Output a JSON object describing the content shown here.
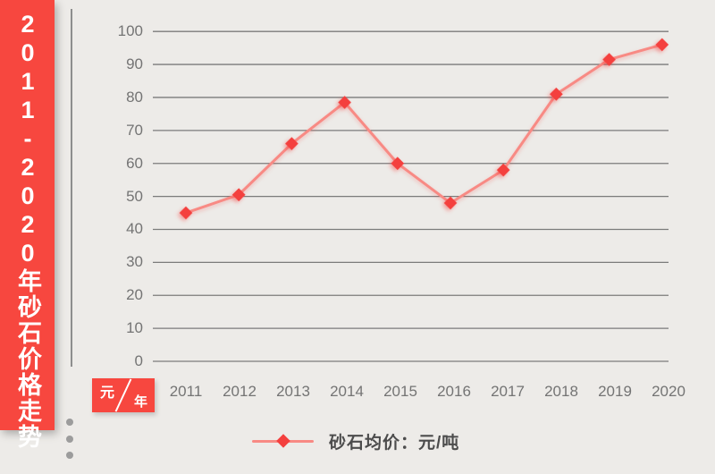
{
  "banner": {
    "title": "2011-2020年砂石价格走势"
  },
  "axis_unit_badge": {
    "numerator": "元",
    "denominator": "年"
  },
  "legend": {
    "label": "砂石均价：元/吨"
  },
  "colors": {
    "background": "#edebe8",
    "banner_red": "#f7473f",
    "badge_red": "#f7473f",
    "marker_red": "#f4403e",
    "series_line": "#f88a84",
    "grid_line": "#7b7b7b",
    "axis_line": "#8e8e8e",
    "tick_text": "#747474",
    "legend_text": "#4c4c4c",
    "dot_gray": "#9c9c9c",
    "banner_text": "#ffffff"
  },
  "chart_data": {
    "type": "line",
    "title": "2011-2020年砂石价格走势",
    "categories": [
      "2011",
      "2012",
      "2013",
      "2014",
      "2015",
      "2016",
      "2017",
      "2018",
      "2019",
      "2020"
    ],
    "series": [
      {
        "name": "砂石均价：元/吨",
        "values": [
          45,
          50.5,
          66,
          78.5,
          60,
          48,
          58,
          81,
          91.5,
          96
        ],
        "marker": "diamond",
        "color": "#f4403e",
        "line_color": "#f88a84"
      }
    ],
    "ylabel": "元/年",
    "xlabel": "年",
    "ylim": [
      0,
      100
    ],
    "yticks": [
      0,
      10,
      20,
      30,
      40,
      50,
      60,
      70,
      80,
      90,
      100
    ],
    "grid": true,
    "grid_axis": "y",
    "legend_position": "bottom"
  }
}
